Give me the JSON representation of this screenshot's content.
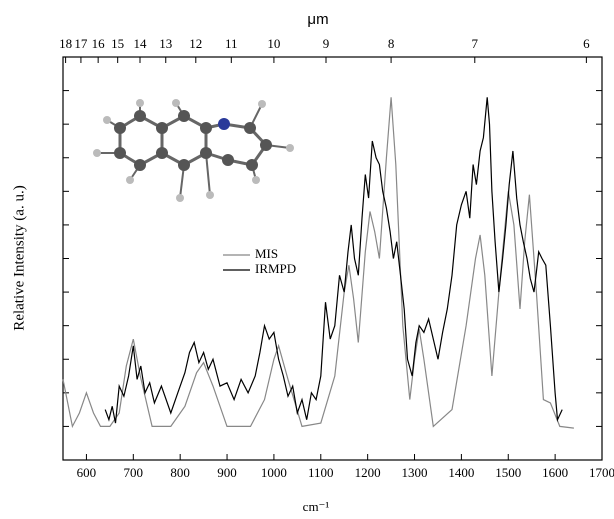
{
  "chart_data": {
    "type": "line",
    "x_label": "cm⁻¹",
    "y_label": "Relative Intensity (a. u.)",
    "x2_label": "μm",
    "xlim": [
      550,
      1700
    ],
    "xticks": [
      600,
      700,
      800,
      900,
      1000,
      1100,
      1200,
      1300,
      1400,
      1500,
      1600,
      1700
    ],
    "ylim": [
      -0.1,
      1.1
    ],
    "yticks": [
      0,
      0.1,
      0.2,
      0.3,
      0.4,
      0.5,
      0.6,
      0.7,
      0.8,
      0.9,
      1.0
    ],
    "x2ticks": [
      18,
      17,
      16,
      15,
      14,
      13,
      12,
      11,
      10,
      9,
      8,
      7,
      6
    ],
    "series": [
      {
        "name": "MIS",
        "color": "#888888",
        "x": [
          550,
          570,
          585,
          600,
          615,
          630,
          650,
          670,
          685,
          700,
          715,
          740,
          780,
          810,
          835,
          850,
          870,
          900,
          950,
          980,
          1000,
          1010,
          1030,
          1060,
          1100,
          1130,
          1150,
          1160,
          1170,
          1180,
          1195,
          1205,
          1215,
          1225,
          1240,
          1250,
          1260,
          1275,
          1290,
          1300,
          1310,
          1320,
          1340,
          1380,
          1410,
          1430,
          1440,
          1450,
          1465,
          1480,
          1500,
          1512,
          1525,
          1535,
          1545,
          1560,
          1575,
          1590,
          1610,
          1640
        ],
        "values": [
          0.14,
          0.0,
          0.04,
          0.1,
          0.04,
          0.0,
          0.0,
          0.04,
          0.18,
          0.26,
          0.15,
          0.0,
          0.0,
          0.06,
          0.16,
          0.19,
          0.12,
          0.0,
          0.0,
          0.08,
          0.2,
          0.24,
          0.14,
          0.0,
          0.01,
          0.15,
          0.4,
          0.48,
          0.38,
          0.25,
          0.52,
          0.64,
          0.58,
          0.5,
          0.8,
          0.98,
          0.78,
          0.3,
          0.08,
          0.2,
          0.29,
          0.2,
          0.0,
          0.05,
          0.3,
          0.5,
          0.57,
          0.45,
          0.15,
          0.4,
          0.7,
          0.6,
          0.35,
          0.55,
          0.69,
          0.4,
          0.08,
          0.07,
          0.0,
          -0.005
        ]
      },
      {
        "name": "IRMPD",
        "color": "#000000",
        "x": [
          640,
          648,
          655,
          662,
          670,
          680,
          690,
          700,
          708,
          716,
          725,
          735,
          745,
          760,
          780,
          795,
          810,
          820,
          830,
          840,
          850,
          860,
          870,
          885,
          900,
          915,
          930,
          945,
          960,
          970,
          980,
          990,
          1000,
          1010,
          1020,
          1030,
          1040,
          1050,
          1060,
          1070,
          1080,
          1090,
          1100,
          1110,
          1120,
          1130,
          1140,
          1150,
          1158,
          1165,
          1172,
          1180,
          1188,
          1195,
          1202,
          1210,
          1218,
          1225,
          1232,
          1240,
          1248,
          1255,
          1262,
          1270,
          1278,
          1285,
          1295,
          1303,
          1310,
          1320,
          1330,
          1340,
          1350,
          1360,
          1370,
          1380,
          1390,
          1400,
          1410,
          1418,
          1425,
          1432,
          1440,
          1447,
          1455,
          1460,
          1465,
          1472,
          1480,
          1488,
          1495,
          1502,
          1510,
          1518,
          1525,
          1532,
          1540,
          1547,
          1555,
          1560,
          1565,
          1572,
          1580,
          1590,
          1600,
          1605,
          1615
        ],
        "values": [
          0.05,
          0.02,
          0.06,
          0.01,
          0.12,
          0.09,
          0.15,
          0.24,
          0.14,
          0.18,
          0.1,
          0.13,
          0.07,
          0.12,
          0.04,
          0.1,
          0.16,
          0.22,
          0.25,
          0.19,
          0.22,
          0.17,
          0.2,
          0.12,
          0.13,
          0.08,
          0.14,
          0.1,
          0.15,
          0.22,
          0.3,
          0.26,
          0.28,
          0.2,
          0.15,
          0.09,
          0.12,
          0.04,
          0.08,
          0.02,
          0.1,
          0.08,
          0.15,
          0.37,
          0.26,
          0.3,
          0.45,
          0.4,
          0.52,
          0.6,
          0.5,
          0.45,
          0.62,
          0.75,
          0.68,
          0.85,
          0.8,
          0.78,
          0.7,
          0.65,
          0.58,
          0.5,
          0.55,
          0.45,
          0.35,
          0.2,
          0.15,
          0.25,
          0.3,
          0.28,
          0.32,
          0.26,
          0.2,
          0.28,
          0.35,
          0.45,
          0.6,
          0.66,
          0.7,
          0.62,
          0.78,
          0.72,
          0.82,
          0.86,
          0.98,
          0.9,
          0.7,
          0.55,
          0.4,
          0.5,
          0.6,
          0.72,
          0.82,
          0.68,
          0.6,
          0.55,
          0.5,
          0.44,
          0.4,
          0.46,
          0.52,
          0.5,
          0.48,
          0.3,
          0.1,
          0.02,
          0.05
        ]
      }
    ]
  }
}
